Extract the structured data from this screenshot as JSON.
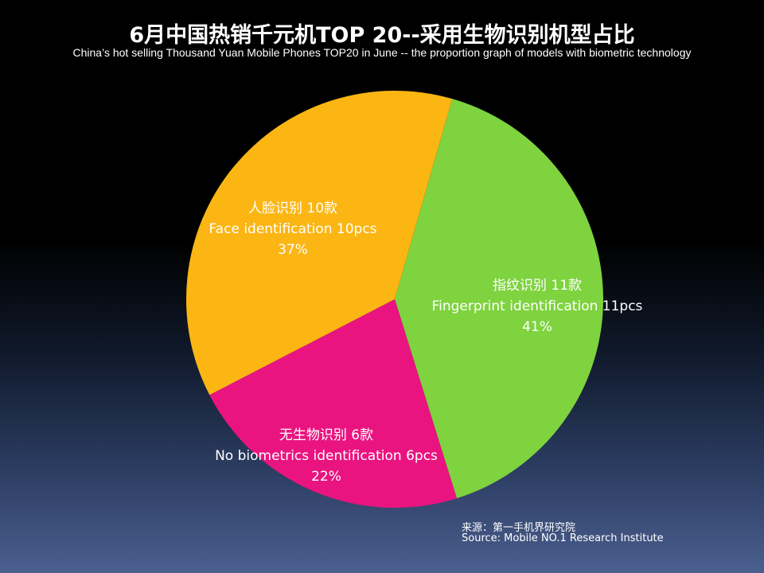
{
  "title": "6月中国热销千元机TOP 20--采用生物识别机型占比",
  "subtitle": "China’s hot selling Thousand Yuan Mobile Phones TOP20 in June -- the proportion graph of models with biometric technology",
  "source": {
    "line1": "来源：第一手机界研究院",
    "line2": "Source: Mobile NO.1 Research Institute"
  },
  "chart_data": {
    "type": "pie",
    "slices": [
      {
        "label_cn": "指纹识别  11款",
        "label_en": "Fingerprint identification 11pcs",
        "pct_label": "41%",
        "value": 11,
        "color": "#7ed33e"
      },
      {
        "label_cn": "无生物识别  6款",
        "label_en": "No biometrics identification 6pcs",
        "pct_label": "22%",
        "value": 6,
        "color": "#ea1480"
      },
      {
        "label_cn": "人脸识别 10款",
        "label_en": "Face identification 10pcs",
        "pct_label": "37%",
        "value": 10,
        "color": "#fbb614"
      }
    ]
  }
}
